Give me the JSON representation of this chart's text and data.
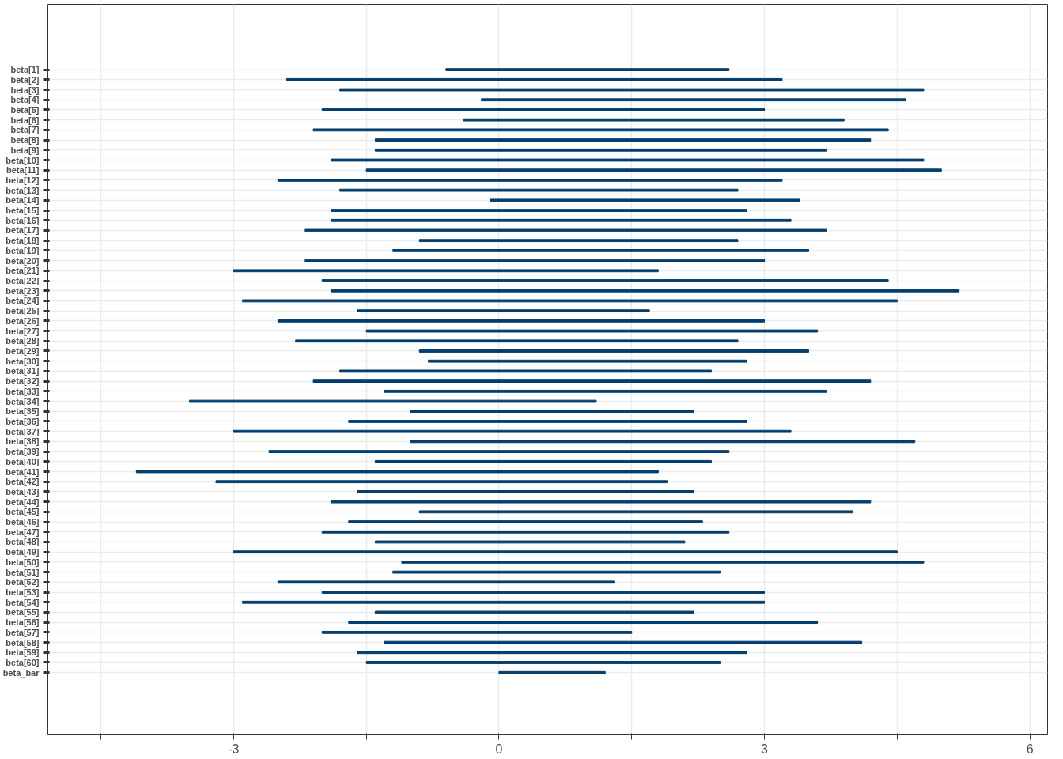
{
  "chart_data": {
    "type": "bar",
    "orientation": "horizontal",
    "color": "#033e6f",
    "categories": [
      "beta[1]",
      "beta[2]",
      "beta[3]",
      "beta[4]",
      "beta[5]",
      "beta[6]",
      "beta[7]",
      "beta[8]",
      "beta[9]",
      "beta[10]",
      "beta[11]",
      "beta[12]",
      "beta[13]",
      "beta[14]",
      "beta[15]",
      "beta[16]",
      "beta[17]",
      "beta[18]",
      "beta[19]",
      "beta[20]",
      "beta[21]",
      "beta[22]",
      "beta[23]",
      "beta[24]",
      "beta[25]",
      "beta[26]",
      "beta[27]",
      "beta[28]",
      "beta[29]",
      "beta[30]",
      "beta[31]",
      "beta[32]",
      "beta[33]",
      "beta[34]",
      "beta[35]",
      "beta[36]",
      "beta[37]",
      "beta[38]",
      "beta[39]",
      "beta[40]",
      "beta[41]",
      "beta[42]",
      "beta[43]",
      "beta[44]",
      "beta[45]",
      "beta[46]",
      "beta[47]",
      "beta[48]",
      "beta[49]",
      "beta[50]",
      "beta[51]",
      "beta[52]",
      "beta[53]",
      "beta[54]",
      "beta[55]",
      "beta[56]",
      "beta[57]",
      "beta[58]",
      "beta[59]",
      "beta[60]",
      "beta_bar"
    ],
    "base": [
      -0.6,
      -2.4,
      -1.8,
      -0.2,
      -2.0,
      -0.4,
      -2.1,
      -1.4,
      -1.4,
      -1.9,
      -1.5,
      -2.5,
      -1.8,
      -0.1,
      -1.9,
      -1.9,
      -2.2,
      -0.9,
      -1.2,
      -2.2,
      -3.0,
      -2.0,
      -1.9,
      -2.9,
      -1.6,
      -2.5,
      -1.5,
      -2.3,
      -0.9,
      -0.8,
      -1.8,
      -2.1,
      -1.3,
      -3.5,
      -1.0,
      -1.7,
      -3.0,
      -1.0,
      -2.6,
      -1.4,
      -4.1,
      -3.2,
      -1.6,
      -1.9,
      -0.9,
      -1.7,
      -2.0,
      -1.4,
      -3.0,
      -1.1,
      -1.2,
      -2.5,
      -2.0,
      -2.9,
      -1.4,
      -1.7,
      -2.0,
      -1.3,
      -1.6,
      -1.5,
      0.0
    ],
    "values": [
      3.2,
      5.6,
      6.6,
      4.8,
      5.0,
      4.3,
      6.5,
      5.6,
      5.1,
      6.7,
      6.5,
      5.7,
      4.5,
      3.5,
      4.7,
      5.2,
      5.9,
      3.6,
      4.7,
      5.2,
      4.8,
      6.4,
      7.1,
      7.4,
      3.3,
      5.5,
      5.1,
      5.0,
      4.4,
      3.6,
      4.2,
      6.3,
      5.0,
      4.6,
      3.2,
      4.5,
      6.3,
      5.7,
      5.2,
      3.8,
      5.9,
      5.1,
      3.8,
      6.1,
      4.9,
      4.0,
      4.6,
      3.5,
      7.5,
      5.9,
      3.7,
      3.8,
      5.0,
      5.9,
      3.6,
      5.3,
      3.5,
      5.4,
      4.4,
      4.0,
      1.2
    ],
    "xlim": [
      -5.1,
      6.2
    ],
    "xticks": [
      {
        "value": -4.5,
        "label": null
      },
      -3,
      {
        "value": -1.5,
        "label": null
      },
      0,
      {
        "value": 1.5,
        "label": null
      },
      3,
      {
        "value": 4.5,
        "label": null
      },
      6
    ],
    "grid": true
  }
}
